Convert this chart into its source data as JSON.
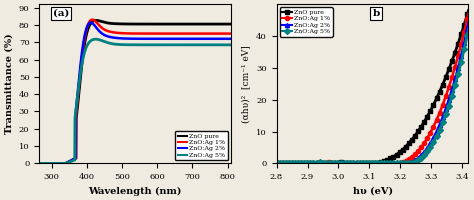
{
  "panel_a": {
    "title": "(a)",
    "xlabel": "Wavelength (nm)",
    "ylabel": "Transmittance (%)",
    "xlim": [
      265,
      810
    ],
    "ylim": [
      0,
      92
    ],
    "yticks": [
      0,
      10,
      20,
      30,
      40,
      50,
      60,
      70,
      80,
      90
    ],
    "xticks": [
      300,
      400,
      500,
      600,
      700,
      800
    ],
    "curves": {
      "ZnO pure": {
        "color": "#000000",
        "lw": 2.0
      },
      "ZnO:Ag 1%": {
        "color": "#ff0000",
        "lw": 1.8
      },
      "ZnO:Ag 2%": {
        "color": "#0000ff",
        "lw": 1.8
      },
      "ZnO:Ag 5%": {
        "color": "#008080",
        "lw": 2.0
      }
    }
  },
  "panel_b": {
    "title": "b",
    "xlabel": "hυ (eV)",
    "ylabel": "(αhυ)²  [cm⁻¹ eV]",
    "xlim": [
      2.8,
      3.42
    ],
    "ylim": [
      0,
      50
    ],
    "yticks": [
      0,
      10,
      20,
      30,
      40
    ],
    "xticks": [
      2.8,
      2.9,
      3.0,
      3.1,
      3.2,
      3.3,
      3.4
    ],
    "curves": {
      "ZnO pure": {
        "color": "#000000",
        "lw": 2.0,
        "marker": "s",
        "ms": 3
      },
      "ZnO:Ag 1%": {
        "color": "#ff0000",
        "lw": 1.8,
        "marker": "o",
        "ms": 3
      },
      "ZnO:Ag 2%": {
        "color": "#0000ff",
        "lw": 1.8,
        "marker": "^",
        "ms": 3
      },
      "ZnO:Ag 5%": {
        "color": "#008080",
        "lw": 2.0,
        "marker": "D",
        "ms": 3
      }
    }
  },
  "bg_color": "#f0ebe0",
  "legend_labels": [
    "ZnO pure",
    "ZnO:Ag 1%",
    "ZnO:Ag 2%",
    "ZnO:Ag 5%"
  ]
}
